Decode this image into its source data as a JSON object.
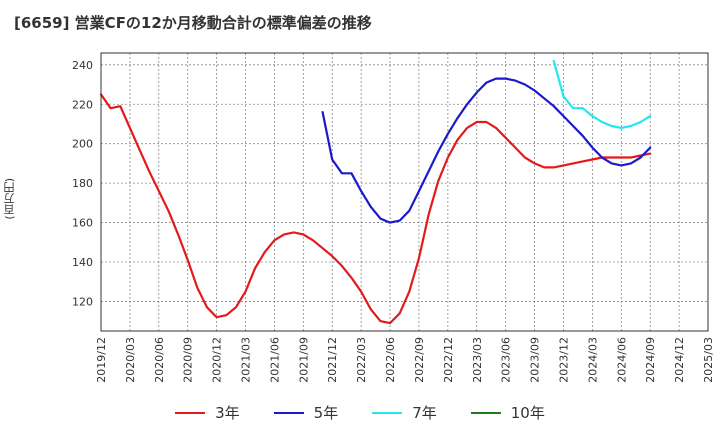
{
  "title": "[6659]  営業CFの12か月移動合計の標準偏差の推移",
  "y_unit_label": "(百万円)",
  "colors": {
    "3y": "#e31a1c",
    "5y": "#1a1acc",
    "7y": "#22e6f0",
    "10y": "#1a7a1a",
    "grid": "#888888",
    "frame": "#333333"
  },
  "chart_data": {
    "type": "line",
    "title": "[6659]  営業CFの12か月移動合計の標準偏差の推移",
    "xlabel": "",
    "ylabel": "(百万円)",
    "x_ticks": [
      "2019/12",
      "2020/03",
      "2020/06",
      "2020/09",
      "2020/12",
      "2021/03",
      "2021/06",
      "2021/09",
      "2021/12",
      "2022/03",
      "2022/06",
      "2022/09",
      "2022/12",
      "2023/03",
      "2023/06",
      "2023/09",
      "2023/12",
      "2024/03",
      "2024/06",
      "2024/09",
      "2024/12",
      "2025/03"
    ],
    "ylim": [
      105,
      246
    ],
    "y_ticks": [
      120,
      140,
      160,
      180,
      200,
      220,
      240
    ],
    "grid": true,
    "legend_position": "bottom",
    "series": [
      {
        "name": "3年",
        "color": "#e31a1c",
        "x": [
          "2019/12",
          "2020/01",
          "2020/02",
          "2020/03",
          "2020/04",
          "2020/05",
          "2020/06",
          "2020/07",
          "2020/08",
          "2020/09",
          "2020/10",
          "2020/11",
          "2020/12",
          "2021/01",
          "2021/02",
          "2021/03",
          "2021/04",
          "2021/05",
          "2021/06",
          "2021/07",
          "2021/08",
          "2021/09",
          "2021/10",
          "2021/11",
          "2021/12",
          "2022/01",
          "2022/02",
          "2022/03",
          "2022/04",
          "2022/05",
          "2022/06",
          "2022/07",
          "2022/08",
          "2022/09",
          "2022/10",
          "2022/11",
          "2022/12",
          "2023/01",
          "2023/02",
          "2023/03",
          "2023/04",
          "2023/05",
          "2023/06",
          "2023/07",
          "2023/08",
          "2023/09",
          "2023/10",
          "2023/11",
          "2023/12",
          "2024/01",
          "2024/02",
          "2024/03",
          "2024/04",
          "2024/05",
          "2024/06",
          "2024/07",
          "2024/08",
          "2024/09"
        ],
        "values": [
          225,
          218,
          219,
          208,
          197,
          186,
          176,
          166,
          154,
          141,
          127,
          117,
          112,
          113,
          117,
          125,
          137,
          145,
          151,
          154,
          155,
          154,
          151,
          147,
          143,
          138,
          132,
          125,
          116,
          110,
          109,
          114,
          125,
          142,
          164,
          181,
          193,
          202,
          208,
          211,
          211,
          208,
          203,
          198,
          193,
          190,
          188,
          188,
          189,
          190,
          191,
          192,
          193,
          193,
          193,
          193,
          194,
          195
        ]
      },
      {
        "name": "5年",
        "color": "#1a1acc",
        "x": [
          "2021/11",
          "2021/12",
          "2022/01",
          "2022/02",
          "2022/03",
          "2022/04",
          "2022/05",
          "2022/06",
          "2022/07",
          "2022/08",
          "2022/09",
          "2022/10",
          "2022/11",
          "2022/12",
          "2023/01",
          "2023/02",
          "2023/03",
          "2023/04",
          "2023/05",
          "2023/06",
          "2023/07",
          "2023/08",
          "2023/09",
          "2023/10",
          "2023/11",
          "2023/12",
          "2024/01",
          "2024/02",
          "2024/03",
          "2024/04",
          "2024/05",
          "2024/06",
          "2024/07",
          "2024/08",
          "2024/09"
        ],
        "values": [
          216,
          192,
          185,
          185,
          176,
          168,
          162,
          160,
          161,
          166,
          176,
          186,
          196,
          205,
          213,
          220,
          226,
          231,
          233,
          233,
          232,
          230,
          227,
          223,
          219,
          214,
          209,
          204,
          198,
          193,
          190,
          189,
          190,
          193,
          198
        ]
      },
      {
        "name": "7年",
        "color": "#22e6f0",
        "x": [
          "2023/11",
          "2023/12",
          "2024/01",
          "2024/02",
          "2024/03",
          "2024/04",
          "2024/05",
          "2024/06",
          "2024/07",
          "2024/08",
          "2024/09"
        ],
        "values": [
          242,
          224,
          218,
          218,
          214,
          211,
          209,
          208,
          209,
          211,
          214
        ]
      },
      {
        "name": "10年",
        "color": "#1a7a1a",
        "x": [],
        "values": []
      }
    ]
  }
}
